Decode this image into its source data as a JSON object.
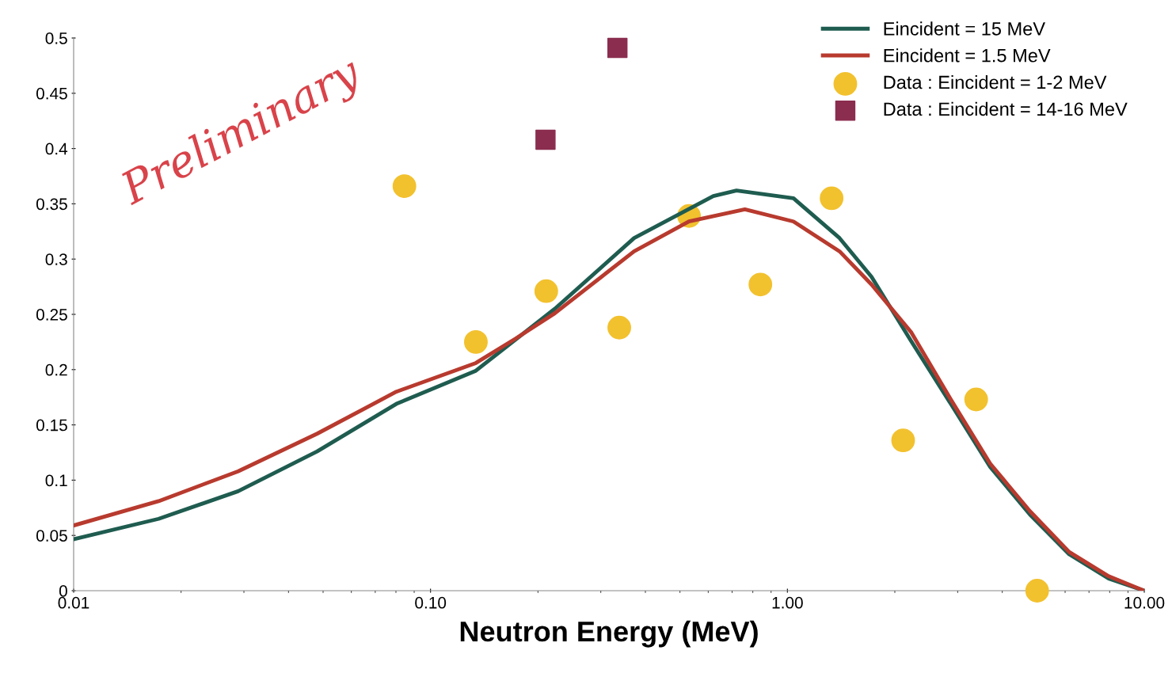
{
  "chart_data": {
    "type": "line",
    "xlabel": "Neutron Energy (MeV)",
    "log": "x",
    "xlim": [
      0.01,
      10
    ],
    "xticks": [
      {
        "value": 0.01,
        "label": "0.01"
      },
      {
        "value": 0.1,
        "label": "0.10"
      },
      {
        "value": 1,
        "label": "1.00"
      },
      {
        "value": 10,
        "label": "10.00"
      }
    ],
    "ylim": [
      0,
      0.5
    ],
    "yticks": [
      {
        "value": 0,
        "label": "0"
      },
      0.05,
      0.1,
      0.15,
      0.2,
      0.25,
      0.3,
      0.35,
      0.4,
      0.45,
      0.5
    ],
    "grid": false,
    "legend": "top right",
    "annotations": [
      "Preliminary"
    ],
    "series": [
      {
        "name": "Eincident = 15 MeV",
        "color": "#1f5c50",
        "marker": "none",
        "line_style": "solid",
        "x": [
          0.01,
          0.0173,
          0.0289,
          0.0481,
          0.0802,
          0.134,
          0.223,
          0.372,
          0.62,
          0.72,
          1.04,
          1.4,
          1.72,
          2.22,
          2.87,
          3.7,
          4.78,
          6.16,
          7.95,
          10
        ],
        "values": [
          0.0466,
          0.065,
          0.09,
          0.126,
          0.169,
          0.199,
          0.255,
          0.319,
          0.357,
          0.362,
          0.355,
          0.319,
          0.284,
          0.226,
          0.169,
          0.112,
          0.069,
          0.033,
          0.011,
          0
        ]
      },
      {
        "name": "Eincident = 1.5 MeV",
        "color": "#b83a2e",
        "marker": "none",
        "line_style": "solid",
        "x": [
          0.01,
          0.0173,
          0.0289,
          0.0481,
          0.0802,
          0.134,
          0.173,
          0.223,
          0.372,
          0.53,
          0.76,
          1.04,
          1.4,
          1.72,
          2.22,
          2.87,
          3.7,
          4.78,
          6.16,
          7.95,
          10
        ],
        "values": [
          0.059,
          0.081,
          0.108,
          0.142,
          0.18,
          0.206,
          0.228,
          0.251,
          0.307,
          0.334,
          0.345,
          0.334,
          0.307,
          0.277,
          0.234,
          0.173,
          0.115,
          0.072,
          0.035,
          0.013,
          0
        ]
      },
      {
        "name": "Data : Eincident = 1-2 MeV",
        "type": "scatter",
        "color": "#f2c12e",
        "marker": "circle",
        "x": [
          0.0845,
          0.134,
          0.211,
          0.338,
          0.53,
          0.84,
          1.33,
          2.11,
          3.38,
          5.01
        ],
        "values": [
          0.366,
          0.225,
          0.271,
          0.238,
          0.339,
          0.277,
          0.355,
          0.136,
          0.173,
          0
        ]
      },
      {
        "name": "Data : Eincident = 14-16 MeV",
        "type": "scatter",
        "color": "#8b2d4f",
        "marker": "square",
        "x": [
          0.21,
          0.334
        ],
        "values": [
          0.408,
          0.491
        ]
      }
    ]
  }
}
